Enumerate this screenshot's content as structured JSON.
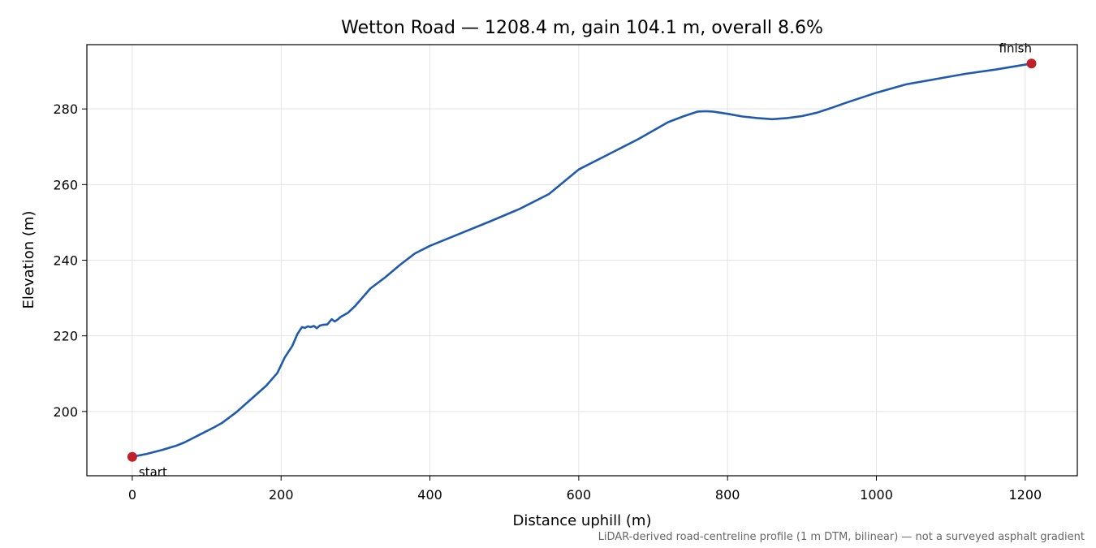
{
  "chart_data": {
    "type": "line",
    "title": "Wetton Road — 1208.4 m, gain 104.1 m, overall 8.6%",
    "xlabel": "Distance uphill (m)",
    "ylabel": "Elevation (m)",
    "xlim": [
      -61,
      1270
    ],
    "ylim": [
      183,
      297
    ],
    "xticks": [
      0,
      200,
      400,
      600,
      800,
      1000,
      1200
    ],
    "yticks": [
      200,
      220,
      240,
      260,
      280
    ],
    "grid": true,
    "line_color": "#1f5aae",
    "marker_color": "#c0202b",
    "footnote": "LiDAR-derived road-centreline profile (1 m DTM, bilinear) — not a surveyed asphalt gradient",
    "series": [
      {
        "x": [
          0,
          20,
          40,
          50,
          60,
          70,
          80,
          90,
          100,
          110,
          120,
          140,
          160,
          180,
          195,
          205,
          215,
          222,
          228,
          232,
          236,
          240,
          244,
          248,
          252,
          256,
          262,
          268,
          272,
          276,
          280,
          290,
          300,
          320,
          340,
          360,
          380,
          400,
          440,
          480,
          520,
          560,
          600,
          640,
          680,
          720,
          740,
          760,
          770,
          780,
          800,
          820,
          840,
          860,
          880,
          900,
          920,
          940,
          960,
          1000,
          1040,
          1080,
          1120,
          1160,
          1208.4
        ],
        "y": [
          188.0,
          188.8,
          189.8,
          190.4,
          191.0,
          191.8,
          192.8,
          193.8,
          194.8,
          195.8,
          196.9,
          199.8,
          203.3,
          206.8,
          210.2,
          214.3,
          217.3,
          220.5,
          222.3,
          222.1,
          222.5,
          222.3,
          222.6,
          222.0,
          222.7,
          222.9,
          223.0,
          224.4,
          223.8,
          224.3,
          225.0,
          226.1,
          228.0,
          232.5,
          235.5,
          238.8,
          241.8,
          243.8,
          247.0,
          250.2,
          253.5,
          257.5,
          264.0,
          268.0,
          272.0,
          276.5,
          278.0,
          279.3,
          279.4,
          279.3,
          278.7,
          278.0,
          277.6,
          277.3,
          277.6,
          278.1,
          279.0,
          280.3,
          281.7,
          284.3,
          286.5,
          287.9,
          289.3,
          290.4,
          292.0
        ]
      }
    ],
    "annotations": [
      {
        "label": "start",
        "x": 0,
        "y": 188.0
      },
      {
        "label": "finish",
        "x": 1208.4,
        "y": 292.0
      }
    ]
  }
}
